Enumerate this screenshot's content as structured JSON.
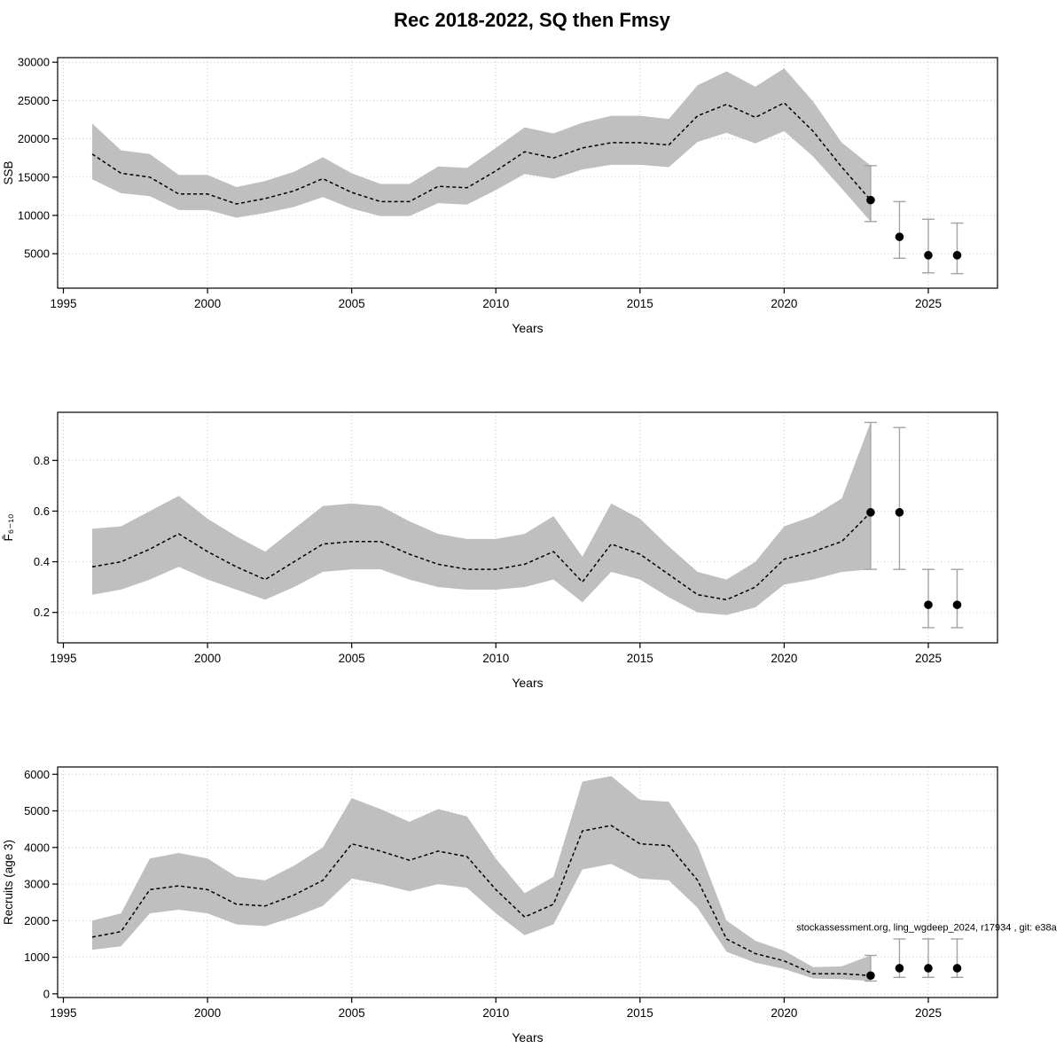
{
  "title": "Rec 2018-2022, SQ then Fmsy",
  "colors": {
    "band": "#bfbfbf",
    "line": "#000000",
    "errorbar": "#a3a3a3",
    "grid": "#c6c6c6",
    "point": "#000000",
    "axis": "#000000",
    "annotation": "#333333"
  },
  "chart_data": [
    {
      "type": "line",
      "ylabel": "SSB",
      "xlabel": "Years",
      "xlim": [
        1994.8,
        2027.4
      ],
      "ylim": [
        500,
        30600
      ],
      "xticks": [
        1995,
        2000,
        2005,
        2010,
        2015,
        2020,
        2025
      ],
      "yticks": [
        5000,
        10000,
        15000,
        20000,
        25000,
        30000
      ],
      "grid": "dotted",
      "legend": "none",
      "series": {
        "name": "SSB median with confidence band",
        "x": [
          1996,
          1997,
          1998,
          1999,
          2000,
          2001,
          2002,
          2003,
          2004,
          2005,
          2006,
          2007,
          2008,
          2009,
          2010,
          2011,
          2012,
          2013,
          2014,
          2015,
          2016,
          2017,
          2018,
          2019,
          2020,
          2021,
          2022,
          2023
        ],
        "y": [
          18000,
          15500,
          15000,
          12800,
          12800,
          11500,
          12200,
          13200,
          14800,
          13000,
          11800,
          11800,
          13800,
          13600,
          15800,
          18300,
          17500,
          18800,
          19500,
          19500,
          19200,
          23000,
          24500,
          22800,
          24700,
          21000,
          16300,
          12000
        ],
        "lower": [
          14700,
          12900,
          12500,
          10700,
          10700,
          9700,
          10300,
          11100,
          12400,
          10900,
          9900,
          9900,
          11600,
          11400,
          13300,
          15400,
          14800,
          16000,
          16600,
          16600,
          16300,
          19600,
          20800,
          19400,
          21000,
          17700,
          13500,
          9200
        ],
        "upper": [
          22000,
          18500,
          18000,
          15300,
          15300,
          13700,
          14500,
          15700,
          17600,
          15500,
          14100,
          14100,
          16400,
          16200,
          18800,
          21500,
          20700,
          22100,
          23000,
          23000,
          22600,
          27000,
          28800,
          26800,
          29200,
          24900,
          19500,
          16500
        ]
      },
      "forecast": {
        "name": "forecast points with error bars",
        "x": [
          2023,
          2024,
          2025,
          2026
        ],
        "y": [
          12000,
          7200,
          4800,
          4800
        ],
        "lower": [
          9200,
          4400,
          2500,
          2400
        ],
        "upper": [
          16500,
          11800,
          9500,
          9000
        ]
      }
    },
    {
      "type": "line",
      "ylabel": "F̄₆₋₁₀",
      "xlabel": "Years",
      "xlim": [
        1994.8,
        2027.4
      ],
      "ylim": [
        0.08,
        0.99
      ],
      "xticks": [
        1995,
        2000,
        2005,
        2010,
        2015,
        2020,
        2025
      ],
      "yticks": [
        0.2,
        0.4,
        0.6,
        0.8
      ],
      "grid": "dotted",
      "legend": "none",
      "series": {
        "name": "F median with confidence band",
        "x": [
          1996,
          1997,
          1998,
          1999,
          2000,
          2001,
          2002,
          2003,
          2004,
          2005,
          2006,
          2007,
          2008,
          2009,
          2010,
          2011,
          2012,
          2013,
          2014,
          2015,
          2016,
          2017,
          2018,
          2019,
          2020,
          2021,
          2022,
          2023
        ],
        "y": [
          0.38,
          0.4,
          0.45,
          0.51,
          0.44,
          0.38,
          0.33,
          0.4,
          0.47,
          0.48,
          0.48,
          0.43,
          0.39,
          0.37,
          0.37,
          0.39,
          0.44,
          0.32,
          0.47,
          0.43,
          0.35,
          0.27,
          0.25,
          0.3,
          0.41,
          0.44,
          0.48,
          0.595
        ],
        "lower": [
          0.27,
          0.29,
          0.33,
          0.38,
          0.33,
          0.29,
          0.25,
          0.3,
          0.36,
          0.37,
          0.37,
          0.33,
          0.3,
          0.29,
          0.29,
          0.3,
          0.33,
          0.24,
          0.36,
          0.33,
          0.26,
          0.2,
          0.19,
          0.22,
          0.31,
          0.33,
          0.36,
          0.37
        ],
        "upper": [
          0.53,
          0.54,
          0.6,
          0.66,
          0.57,
          0.5,
          0.44,
          0.53,
          0.62,
          0.63,
          0.62,
          0.56,
          0.51,
          0.49,
          0.49,
          0.51,
          0.58,
          0.42,
          0.63,
          0.57,
          0.46,
          0.36,
          0.33,
          0.4,
          0.54,
          0.58,
          0.65,
          0.95
        ]
      },
      "forecast": {
        "name": "forecast points with error bars",
        "x": [
          2023,
          2024,
          2025,
          2026
        ],
        "y": [
          0.595,
          0.595,
          0.23,
          0.23
        ],
        "lower": [
          0.37,
          0.37,
          0.14,
          0.14
        ],
        "upper": [
          0.95,
          0.93,
          0.37,
          0.37
        ]
      }
    },
    {
      "type": "line",
      "ylabel": "Recruits (age 3)",
      "xlabel": "Years",
      "xlim": [
        1994.8,
        2027.4
      ],
      "ylim": [
        -100,
        6200
      ],
      "xticks": [
        1995,
        2000,
        2005,
        2010,
        2015,
        2020,
        2025
      ],
      "yticks": [
        0,
        1000,
        2000,
        3000,
        4000,
        5000,
        6000
      ],
      "grid": "dotted",
      "legend": "none",
      "series": {
        "name": "Recruitment median with confidence band",
        "x": [
          1996,
          1997,
          1998,
          1999,
          2000,
          2001,
          2002,
          2003,
          2004,
          2005,
          2006,
          2007,
          2008,
          2009,
          2010,
          2011,
          2012,
          2013,
          2014,
          2015,
          2016,
          2017,
          2018,
          2019,
          2020,
          2021,
          2022,
          2023
        ],
        "y": [
          1550,
          1700,
          2850,
          2950,
          2850,
          2450,
          2400,
          2700,
          3100,
          4100,
          3900,
          3650,
          3900,
          3750,
          2850,
          2100,
          2450,
          4450,
          4600,
          4100,
          4050,
          3100,
          1500,
          1100,
          900,
          550,
          550,
          500
        ],
        "lower": [
          1200,
          1300,
          2200,
          2300,
          2200,
          1900,
          1850,
          2100,
          2400,
          3150,
          3000,
          2800,
          3000,
          2900,
          2200,
          1600,
          1900,
          3400,
          3550,
          3150,
          3100,
          2350,
          1150,
          850,
          680,
          420,
          400,
          350
        ],
        "upper": [
          2000,
          2200,
          3700,
          3850,
          3700,
          3200,
          3100,
          3500,
          4000,
          5350,
          5050,
          4700,
          5050,
          4850,
          3700,
          2750,
          3200,
          5800,
          5950,
          5300,
          5250,
          4050,
          2000,
          1450,
          1180,
          730,
          750,
          1050
        ]
      },
      "forecast": {
        "name": "forecast points with error bars",
        "x": [
          2023,
          2024,
          2025,
          2026
        ],
        "y": [
          500,
          700,
          700,
          700
        ],
        "lower": [
          350,
          450,
          450,
          450
        ],
        "upper": [
          1050,
          1500,
          1500,
          1500
        ]
      },
      "annotation": {
        "text": "stockassessment.org, ling_wgdeep_2024, r17934 , git: e38a",
        "fx": 1.063,
        "fy": 0.71
      }
    }
  ]
}
